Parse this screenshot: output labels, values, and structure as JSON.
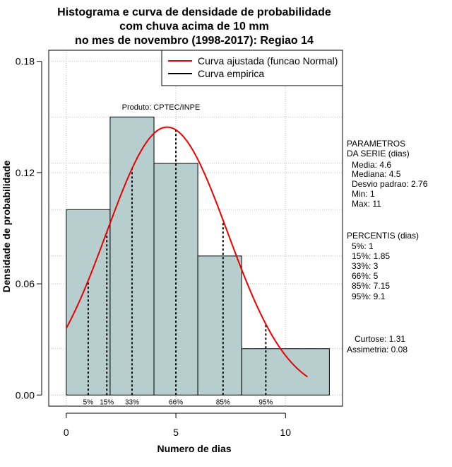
{
  "chart_data": {
    "type": "histogram",
    "title_lines": [
      "Histograma e curva de densidade de probabilidade",
      "com chuva acima de 10 mm",
      "no mes de novembro (1998-2017): Regiao 14"
    ],
    "xlabel": "Numero de dias",
    "ylabel": "Densidade de probabilidade",
    "xlim": [
      -0.8,
      12.6
    ],
    "ylim": [
      -0.006,
      0.186
    ],
    "xticks": [
      0,
      5,
      10
    ],
    "yticks": [
      0.0,
      0.06,
      0.12,
      0.18
    ],
    "ytick_labels": [
      "0.00",
      "0.06",
      "0.12",
      "0.18"
    ],
    "grid": true,
    "bins": [
      {
        "from": 0,
        "to": 2,
        "density": 0.1
      },
      {
        "from": 2,
        "to": 4,
        "density": 0.15
      },
      {
        "from": 4,
        "to": 6,
        "density": 0.125
      },
      {
        "from": 6,
        "to": 8,
        "density": 0.075
      },
      {
        "from": 8,
        "to": 12,
        "density": 0.025
      }
    ],
    "fit_curve": {
      "name": "Curva ajustada (funcao Normal)",
      "color": "#ee0000",
      "distribution": "normal",
      "mean": 4.6,
      "sd": 2.76,
      "x_from": 0,
      "x_to": 11
    },
    "empirical_legend": {
      "name": "Curva empirica",
      "color": "#000000"
    },
    "percentile_lines": [
      {
        "label": "5%",
        "x": 1
      },
      {
        "label": "15%",
        "x": 1.85
      },
      {
        "label": "33%",
        "x": 3
      },
      {
        "label": "66%",
        "x": 5
      },
      {
        "label": "85%",
        "x": 7.15
      },
      {
        "label": "95%",
        "x": 9.1
      }
    ],
    "annotation": "Produto: CPTEC/INPE",
    "bar_color": "#b6cece",
    "legend_position": "top-right"
  },
  "side_panel": {
    "params_title_1": "PARAMETROS",
    "params_title_2": "DA SERIE (dias)",
    "media": "Media: 4.6",
    "mediana": "Mediana: 4.5",
    "desvio": "Desvio padrao: 2.76",
    "min": "Min: 1",
    "max": "Max: 11",
    "percentis_title": "PERCENTIS (dias)",
    "p5": "5%: 1",
    "p15": "15%: 1.85",
    "p33": "33%: 3",
    "p66": "66%: 5",
    "p85": "85%: 7.15",
    "p95": "95%: 9.1",
    "curtose": "Curtose: 1.31",
    "assimetria": "Assimetria: 0.08"
  }
}
